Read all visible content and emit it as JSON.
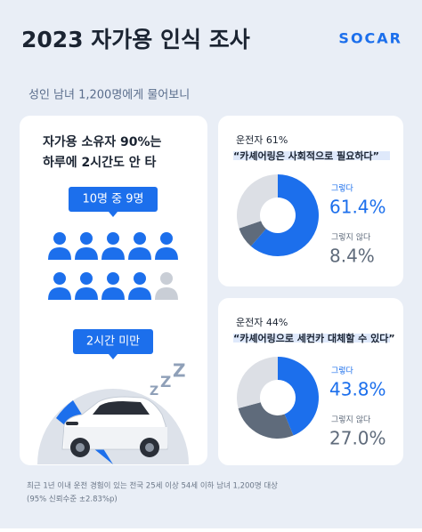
{
  "header": {
    "title": "2023 자가용 인식 조사",
    "logo": "SOCAR",
    "subtitle": "성인 남녀 1,200명에게 물어보니"
  },
  "left_card": {
    "headline": [
      "자가용 소유자 90%는",
      "하루에 2시간도 안 타"
    ],
    "badge_people": "10명 중 9명",
    "badge_time": "2시간 미만"
  },
  "chart_data": [
    {
      "type": "pie",
      "donut": true,
      "subtitle": "운전자 61%",
      "title": "“카셰어링은 사회적으로 필요하다”",
      "categories": [
        "그렇다",
        "그렇지 않다",
        null
      ],
      "values": [
        61.4,
        8.4,
        30.2
      ],
      "value_labels": [
        "61.4%",
        "8.4%",
        null
      ],
      "colors": [
        "#1c6fec",
        "#5f6b7b",
        "#dcdfe5"
      ]
    },
    {
      "type": "pie",
      "donut": true,
      "subtitle": "운전자 44%",
      "title": "“카셰어링으로 세컨카 대체할 수 있다”",
      "categories": [
        "그렇다",
        "그렇지 않다",
        null
      ],
      "values": [
        43.8,
        27.0,
        29.2
      ],
      "value_labels": [
        "43.8%",
        "27.0%",
        null
      ],
      "colors": [
        "#1c6fec",
        "#5f6b7b",
        "#dcdfe5"
      ]
    }
  ],
  "footnote": [
    "최근 1년 이내 운전 경험이 있는 전국 25세 이상 54세 이하 남녀 1,200명 대상",
    "(95% 신뢰수준 ±2.83%p)"
  ]
}
